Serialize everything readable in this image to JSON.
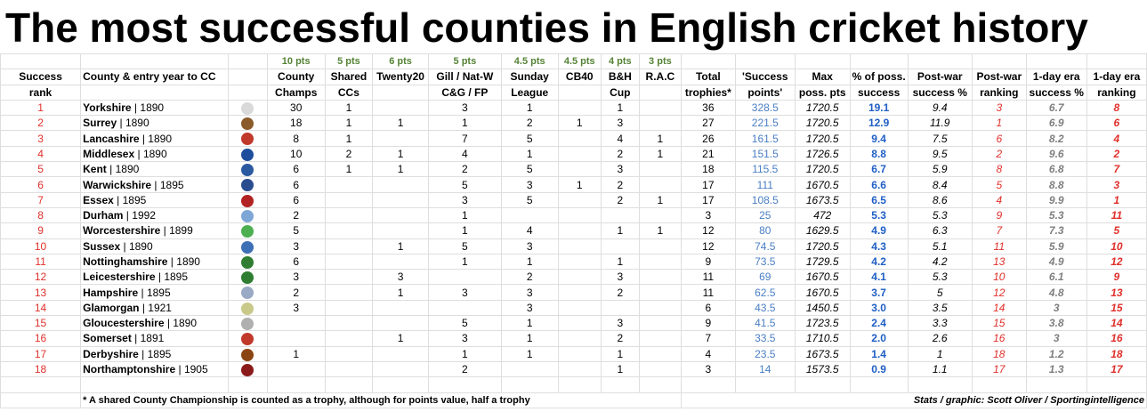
{
  "title": "The most successful counties in English cricket history",
  "points_row": [
    "",
    "",
    "",
    "10 pts",
    "5 pts",
    "6 pts",
    "5 pts",
    "4.5 pts",
    "4.5 pts",
    "4 pts",
    "3 pts",
    "",
    "",
    "",
    "",
    "",
    "",
    "",
    ""
  ],
  "header1": [
    "Success",
    "County & entry year to CC",
    "",
    "County",
    "Shared",
    "Twenty20",
    "Gill / Nat-W",
    "Sunday",
    "CB40",
    "B&H",
    "R.A.C",
    "Total",
    "'Success",
    "Max",
    "% of poss.",
    "Post-war",
    "Post-war",
    "1-day era",
    "1-day era"
  ],
  "header2": [
    "rank",
    "",
    "",
    "Champs",
    "CCs",
    "",
    "C&G / FP",
    "League",
    "",
    "Cup",
    "",
    "trophies*",
    "points'",
    "poss. pts",
    "success",
    "success %",
    "ranking",
    "success %",
    "ranking"
  ],
  "rows": [
    {
      "rank": "1",
      "county": "Yorkshire",
      "year": "1890",
      "logo_color": "#d9d9d9",
      "cc": "30",
      "shared": "1",
      "t20": "",
      "gill": "3",
      "sunday": "1",
      "cb40": "",
      "bh": "1",
      "rac": "",
      "total": "36",
      "sp": "328.5",
      "max": "1720.5",
      "pct": "19.1",
      "pw_pct": "9.4",
      "pw_rank": "3",
      "od_pct": "6.7",
      "od_rank": "8"
    },
    {
      "rank": "2",
      "county": "Surrey",
      "year": "1890",
      "logo_color": "#8b5a2b",
      "cc": "18",
      "shared": "1",
      "t20": "1",
      "gill": "1",
      "sunday": "2",
      "cb40": "1",
      "bh": "3",
      "rac": "",
      "total": "27",
      "sp": "221.5",
      "max": "1720.5",
      "pct": "12.9",
      "pw_pct": "11.9",
      "pw_rank": "1",
      "od_pct": "6.9",
      "od_rank": "6"
    },
    {
      "rank": "3",
      "county": "Lancashire",
      "year": "1890",
      "logo_color": "#c0392b",
      "cc": "8",
      "shared": "1",
      "t20": "",
      "gill": "7",
      "sunday": "5",
      "cb40": "",
      "bh": "4",
      "rac": "1",
      "total": "26",
      "sp": "161.5",
      "max": "1720.5",
      "pct": "9.4",
      "pw_pct": "7.5",
      "pw_rank": "6",
      "od_pct": "8.2",
      "od_rank": "4"
    },
    {
      "rank": "4",
      "county": "Middlesex",
      "year": "1890",
      "logo_color": "#1f4e9c",
      "cc": "10",
      "shared": "2",
      "t20": "1",
      "gill": "4",
      "sunday": "1",
      "cb40": "",
      "bh": "2",
      "rac": "1",
      "total": "21",
      "sp": "151.5",
      "max": "1726.5",
      "pct": "8.8",
      "pw_pct": "9.5",
      "pw_rank": "2",
      "od_pct": "9.6",
      "od_rank": "2"
    },
    {
      "rank": "5",
      "county": "Kent",
      "year": "1890",
      "logo_color": "#2c5aa0",
      "cc": "6",
      "shared": "1",
      "t20": "1",
      "gill": "2",
      "sunday": "5",
      "cb40": "",
      "bh": "3",
      "rac": "",
      "total": "18",
      "sp": "115.5",
      "max": "1720.5",
      "pct": "6.7",
      "pw_pct": "5.9",
      "pw_rank": "8",
      "od_pct": "6.8",
      "od_rank": "7"
    },
    {
      "rank": "6",
      "county": "Warwickshire",
      "year": "1895",
      "logo_color": "#2a4d8f",
      "cc": "6",
      "shared": "",
      "t20": "",
      "gill": "5",
      "sunday": "3",
      "cb40": "1",
      "bh": "2",
      "rac": "",
      "total": "17",
      "sp": "111",
      "max": "1670.5",
      "pct": "6.6",
      "pw_pct": "8.4",
      "pw_rank": "5",
      "od_pct": "8.8",
      "od_rank": "3"
    },
    {
      "rank": "7",
      "county": "Essex",
      "year": "1895",
      "logo_color": "#b22222",
      "cc": "6",
      "shared": "",
      "t20": "",
      "gill": "3",
      "sunday": "5",
      "cb40": "",
      "bh": "2",
      "rac": "1",
      "total": "17",
      "sp": "108.5",
      "max": "1673.5",
      "pct": "6.5",
      "pw_pct": "8.6",
      "pw_rank": "4",
      "od_pct": "9.9",
      "od_rank": "1"
    },
    {
      "rank": "8",
      "county": "Durham",
      "year": "1992",
      "logo_color": "#7fa7d6",
      "cc": "2",
      "shared": "",
      "t20": "",
      "gill": "1",
      "sunday": "",
      "cb40": "",
      "bh": "",
      "rac": "",
      "total": "3",
      "sp": "25",
      "max": "472",
      "pct": "5.3",
      "pw_pct": "5.3",
      "pw_rank": "9",
      "od_pct": "5.3",
      "od_rank": "11"
    },
    {
      "rank": "9",
      "county": "Worcestershire",
      "year": "1899",
      "logo_color": "#4caf50",
      "cc": "5",
      "shared": "",
      "t20": "",
      "gill": "1",
      "sunday": "4",
      "cb40": "",
      "bh": "1",
      "rac": "1",
      "total": "12",
      "sp": "80",
      "max": "1629.5",
      "pct": "4.9",
      "pw_pct": "6.3",
      "pw_rank": "7",
      "od_pct": "7.3",
      "od_rank": "5"
    },
    {
      "rank": "10",
      "county": "Sussex",
      "year": "1890",
      "logo_color": "#3d6fb6",
      "cc": "3",
      "shared": "",
      "t20": "1",
      "gill": "5",
      "sunday": "3",
      "cb40": "",
      "bh": "",
      "rac": "",
      "total": "12",
      "sp": "74.5",
      "max": "1720.5",
      "pct": "4.3",
      "pw_pct": "5.1",
      "pw_rank": "11",
      "od_pct": "5.9",
      "od_rank": "10"
    },
    {
      "rank": "11",
      "county": "Nottinghamshire",
      "year": "1890",
      "logo_color": "#2e7d32",
      "cc": "6",
      "shared": "",
      "t20": "",
      "gill": "1",
      "sunday": "1",
      "cb40": "",
      "bh": "1",
      "rac": "",
      "total": "9",
      "sp": "73.5",
      "max": "1729.5",
      "pct": "4.2",
      "pw_pct": "4.2",
      "pw_rank": "13",
      "od_pct": "4.9",
      "od_rank": "12"
    },
    {
      "rank": "12",
      "county": "Leicestershire",
      "year": "1895",
      "logo_color": "#2e7d32",
      "cc": "3",
      "shared": "",
      "t20": "3",
      "gill": "",
      "sunday": "2",
      "cb40": "",
      "bh": "3",
      "rac": "",
      "total": "11",
      "sp": "69",
      "max": "1670.5",
      "pct": "4.1",
      "pw_pct": "5.3",
      "pw_rank": "10",
      "od_pct": "6.1",
      "od_rank": "9"
    },
    {
      "rank": "13",
      "county": "Hampshire",
      "year": "1895",
      "logo_color": "#9aa9c4",
      "cc": "2",
      "shared": "",
      "t20": "1",
      "gill": "3",
      "sunday": "3",
      "cb40": "",
      "bh": "2",
      "rac": "",
      "total": "11",
      "sp": "62.5",
      "max": "1670.5",
      "pct": "3.7",
      "pw_pct": "5",
      "pw_rank": "12",
      "od_pct": "4.8",
      "od_rank": "13"
    },
    {
      "rank": "14",
      "county": "Glamorgan",
      "year": "1921",
      "logo_color": "#c9c98a",
      "cc": "3",
      "shared": "",
      "t20": "",
      "gill": "",
      "sunday": "3",
      "cb40": "",
      "bh": "",
      "rac": "",
      "total": "6",
      "sp": "43.5",
      "max": "1450.5",
      "pct": "3.0",
      "pw_pct": "3.5",
      "pw_rank": "14",
      "od_pct": "3",
      "od_rank": "15"
    },
    {
      "rank": "15",
      "county": "Gloucestershire",
      "year": "1890",
      "logo_color": "#b0b0b0",
      "cc": "",
      "shared": "",
      "t20": "",
      "gill": "5",
      "sunday": "1",
      "cb40": "",
      "bh": "3",
      "rac": "",
      "total": "9",
      "sp": "41.5",
      "max": "1723.5",
      "pct": "2.4",
      "pw_pct": "3.3",
      "pw_rank": "15",
      "od_pct": "3.8",
      "od_rank": "14"
    },
    {
      "rank": "16",
      "county": "Somerset",
      "year": "1891",
      "logo_color": "#c0392b",
      "cc": "",
      "shared": "",
      "t20": "1",
      "gill": "3",
      "sunday": "1",
      "cb40": "",
      "bh": "2",
      "rac": "",
      "total": "7",
      "sp": "33.5",
      "max": "1710.5",
      "pct": "2.0",
      "pw_pct": "2.6",
      "pw_rank": "16",
      "od_pct": "3",
      "od_rank": "16"
    },
    {
      "rank": "17",
      "county": "Derbyshire",
      "year": "1895",
      "logo_color": "#8b4513",
      "cc": "1",
      "shared": "",
      "t20": "",
      "gill": "1",
      "sunday": "1",
      "cb40": "",
      "bh": "1",
      "rac": "",
      "total": "4",
      "sp": "23.5",
      "max": "1673.5",
      "pct": "1.4",
      "pw_pct": "1",
      "pw_rank": "18",
      "od_pct": "1.2",
      "od_rank": "18"
    },
    {
      "rank": "18",
      "county": "Northamptonshire",
      "year": "1905",
      "logo_color": "#8b1a1a",
      "cc": "",
      "shared": "",
      "t20": "",
      "gill": "2",
      "sunday": "",
      "cb40": "",
      "bh": "1",
      "rac": "",
      "total": "3",
      "sp": "14",
      "max": "1573.5",
      "pct": "0.9",
      "pw_pct": "1.1",
      "pw_rank": "17",
      "od_pct": "1.3",
      "od_rank": "17"
    }
  ],
  "footnote": "* A shared County Championship is counted as a trophy, although for points value, half a trophy",
  "credit": "Stats / graphic: Scott Oliver / Sportingintelligence"
}
